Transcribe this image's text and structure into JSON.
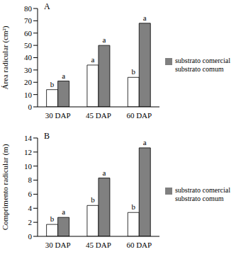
{
  "chart_data": [
    {
      "type": "bar",
      "title": "A",
      "y_label": "Área radicular (cm²)",
      "categories": [
        "30 DAP",
        "45 DAP",
        "60 DAP"
      ],
      "series": [
        {
          "name": "substrato comum",
          "color": "#ffffff",
          "values": [
            14,
            34,
            24
          ]
        },
        {
          "name": "substrato comercial",
          "color": "#808080",
          "values": [
            21,
            50,
            68
          ]
        }
      ],
      "ylim": [
        0,
        80
      ],
      "yticks": [
        0,
        10,
        20,
        30,
        40,
        50,
        60,
        70,
        80
      ],
      "legend": "right",
      "annotations": [
        {
          "category": "30 DAP",
          "series": "substrato comum",
          "text": "b"
        },
        {
          "category": "30 DAP",
          "series": "substrato comercial",
          "text": "a"
        },
        {
          "category": "45 DAP",
          "series": "substrato comum",
          "text": "a"
        },
        {
          "category": "45 DAP",
          "series": "substrato comercial",
          "text": "a"
        },
        {
          "category": "60 DAP",
          "series": "substrato comum",
          "text": "b"
        },
        {
          "category": "60 DAP",
          "series": "substrato comercial",
          "text": "a"
        }
      ]
    },
    {
      "type": "bar",
      "title": "B",
      "y_label": "Comprimento radicular (m)",
      "categories": [
        "30 DAP",
        "45 DAP",
        "60 DAP"
      ],
      "series": [
        {
          "name": "substrato comum",
          "color": "#ffffff",
          "values": [
            1.7,
            4.4,
            3.4
          ]
        },
        {
          "name": "substrato comercial",
          "color": "#808080",
          "values": [
            2.7,
            8.3,
            12.6
          ]
        }
      ],
      "ylim": [
        0,
        14
      ],
      "yticks": [
        0,
        2,
        4,
        6,
        8,
        10,
        12,
        14
      ],
      "legend": "right",
      "annotations": [
        {
          "category": "30 DAP",
          "series": "substrato comum",
          "text": "b"
        },
        {
          "category": "30 DAP",
          "series": "substrato comercial",
          "text": "a"
        },
        {
          "category": "45 DAP",
          "series": "substrato comum",
          "text": "b"
        },
        {
          "category": "45 DAP",
          "series": "substrato comercial",
          "text": "a"
        },
        {
          "category": "60 DAP",
          "series": "substrato comum",
          "text": "b"
        },
        {
          "category": "60 DAP",
          "series": "substrato comercial",
          "text": "a"
        }
      ]
    }
  ]
}
